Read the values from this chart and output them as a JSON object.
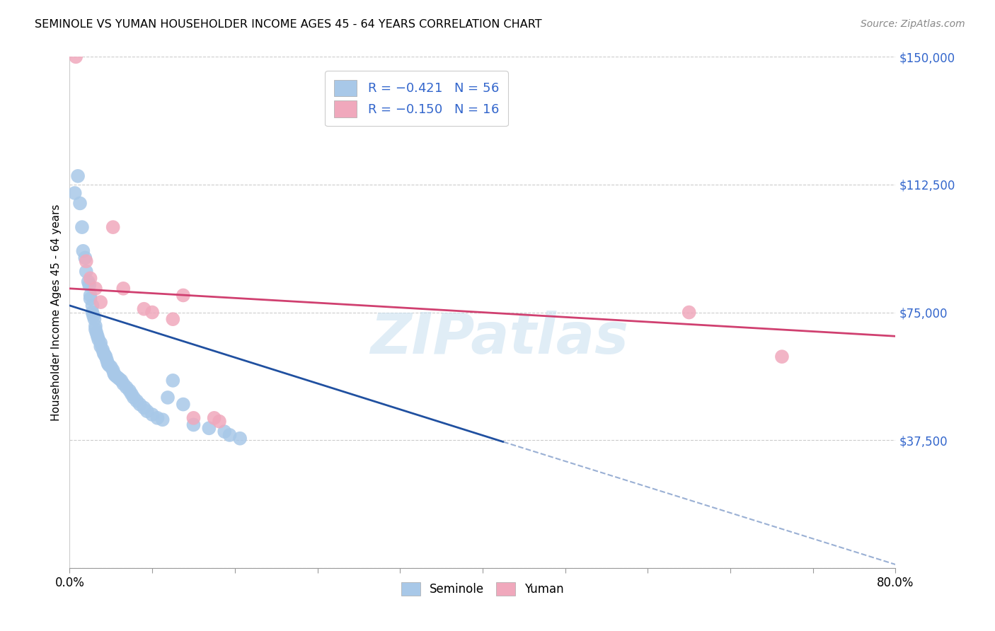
{
  "title": "SEMINOLE VS YUMAN HOUSEHOLDER INCOME AGES 45 - 64 YEARS CORRELATION CHART",
  "source": "Source: ZipAtlas.com",
  "ylabel": "Householder Income Ages 45 - 64 years",
  "xmin": 0.0,
  "xmax": 0.8,
  "ymin": 0,
  "ymax": 150000,
  "yticks": [
    0,
    37500,
    75000,
    112500,
    150000
  ],
  "ytick_labels": [
    "",
    "$37,500",
    "$75,000",
    "$112,500",
    "$150,000"
  ],
  "xticks": [
    0.0,
    0.08,
    0.16,
    0.24,
    0.32,
    0.4,
    0.48,
    0.56,
    0.64,
    0.72,
    0.8
  ],
  "xtick_show": [
    0,
    10
  ],
  "xtick_labels": [
    "0.0%",
    "",
    "",
    "",
    "",
    "",
    "",
    "",
    "",
    "",
    "80.0%"
  ],
  "seminole_color": "#a8c8e8",
  "yuman_color": "#f0a8bc",
  "trend_seminole_color": "#2050a0",
  "trend_yuman_color": "#d04070",
  "watermark": "ZIPatlas",
  "seminole_x": [
    0.005,
    0.008,
    0.01,
    0.012,
    0.013,
    0.015,
    0.016,
    0.018,
    0.019,
    0.02,
    0.02,
    0.022,
    0.022,
    0.023,
    0.024,
    0.025,
    0.025,
    0.026,
    0.027,
    0.028,
    0.03,
    0.03,
    0.032,
    0.033,
    0.034,
    0.035,
    0.036,
    0.037,
    0.038,
    0.04,
    0.042,
    0.043,
    0.044,
    0.046,
    0.048,
    0.05,
    0.052,
    0.055,
    0.058,
    0.06,
    0.062,
    0.065,
    0.068,
    0.072,
    0.075,
    0.08,
    0.085,
    0.09,
    0.095,
    0.1,
    0.11,
    0.12,
    0.135,
    0.15,
    0.155,
    0.165
  ],
  "seminole_y": [
    110000,
    115000,
    107000,
    100000,
    93000,
    91000,
    87000,
    84000,
    83000,
    80000,
    79000,
    77000,
    75000,
    74000,
    73000,
    71000,
    70000,
    69000,
    68000,
    67000,
    66000,
    65000,
    64000,
    63000,
    62500,
    62000,
    61000,
    60000,
    59500,
    59000,
    58000,
    57000,
    56500,
    56000,
    55500,
    55000,
    54000,
    53000,
    52000,
    51000,
    50000,
    49000,
    48000,
    47000,
    46000,
    45000,
    44000,
    43500,
    50000,
    55000,
    48000,
    42000,
    41000,
    40000,
    39000,
    38000
  ],
  "yuman_x": [
    0.006,
    0.016,
    0.02,
    0.025,
    0.03,
    0.042,
    0.052,
    0.072,
    0.08,
    0.1,
    0.11,
    0.12,
    0.14,
    0.145,
    0.6,
    0.69
  ],
  "yuman_y": [
    150000,
    90000,
    85000,
    82000,
    78000,
    100000,
    82000,
    76000,
    75000,
    73000,
    80000,
    44000,
    44000,
    43000,
    75000,
    62000
  ],
  "sem_trend_x0": 0.0,
  "sem_trend_y0": 77000,
  "sem_trend_x1": 0.42,
  "sem_trend_y1": 37000,
  "sem_dash_x0": 0.42,
  "sem_dash_y0": 37000,
  "sem_dash_x1": 0.8,
  "sem_dash_y1": 1000,
  "yum_trend_x0": 0.0,
  "yum_trend_y0": 82000,
  "yum_trend_x1": 0.8,
  "yum_trend_y1": 68000
}
